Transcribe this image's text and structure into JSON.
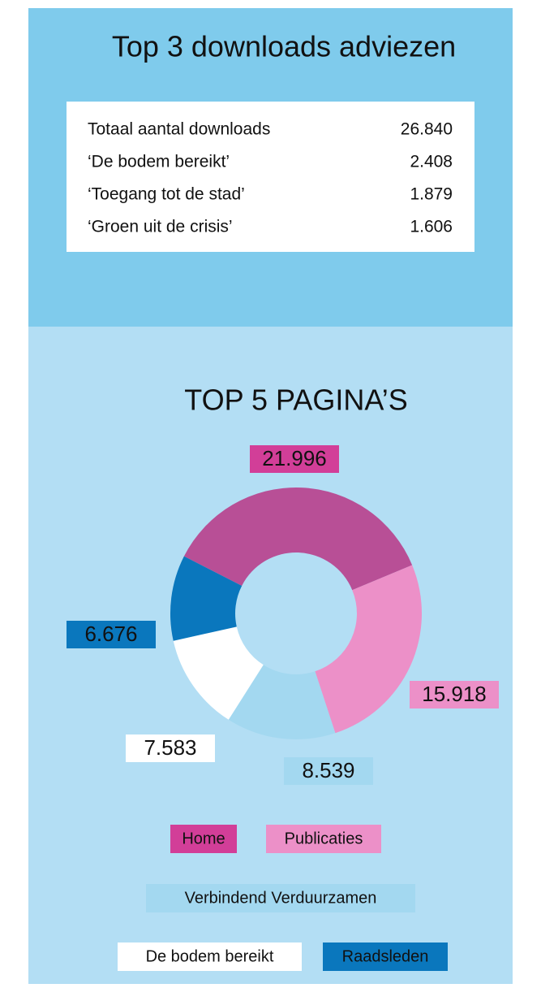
{
  "table": {
    "title": "Top 3 downloads adviezen",
    "rows": [
      [
        "Totaal aantal downloads",
        "26.840"
      ],
      [
        "‘De bodem bereikt’",
        "2.408"
      ],
      [
        "‘Toegang tot de stad’",
        "1.879"
      ],
      [
        "‘Groen uit de crisis’",
        "1.606"
      ]
    ]
  },
  "chart_data": {
    "type": "donut",
    "title": "TOP 5 PAGINA’S",
    "categories": [
      "Home",
      "Publicaties",
      "Verbindend Verduurzamen",
      "De bodem bereikt",
      "Raadsleden"
    ],
    "values": [
      21996,
      15918,
      8539,
      7583,
      6676
    ],
    "value_labels": [
      "21.996",
      "15.918",
      "8.539",
      "7.583",
      "6.676"
    ],
    "colors": [
      "#b84f96",
      "#ec90c8",
      "#a3d8f0",
      "#ffffff",
      "#0a77bd"
    ],
    "label_colors": [
      "#d23e98",
      "#ec90c8",
      "#a3d8f0",
      "#ffffff",
      "#0a77bd"
    ]
  }
}
